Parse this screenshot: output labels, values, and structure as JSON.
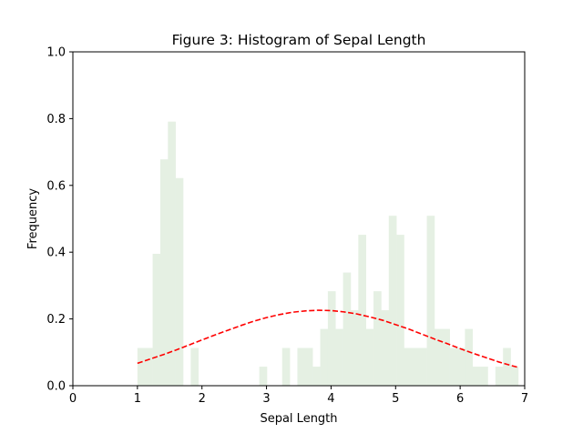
{
  "chart_data": {
    "type": "bar",
    "title": "Figure 3: Histogram of Sepal Length",
    "xlabel": "Sepal Length",
    "ylabel": "Frequency",
    "xlim": [
      0,
      7
    ],
    "ylim": [
      0,
      1.0
    ],
    "xticks": [
      "0",
      "1",
      "2",
      "3",
      "4",
      "5",
      "6",
      "7"
    ],
    "yticks": [
      "0.0",
      "0.2",
      "0.4",
      "0.6",
      "0.8",
      "1.0"
    ],
    "grid": false,
    "legend": "none",
    "histogram": {
      "name": "",
      "color": "#e5f0e3",
      "bin_width": 0.118,
      "bins": [
        {
          "x0": 1.0,
          "x1": 1.118,
          "value": 0.113
        },
        {
          "x0": 1.118,
          "x1": 1.236,
          "value": 0.113
        },
        {
          "x0": 1.236,
          "x1": 1.354,
          "value": 0.395
        },
        {
          "x0": 1.354,
          "x1": 1.472,
          "value": 0.678
        },
        {
          "x0": 1.472,
          "x1": 1.59,
          "value": 0.791
        },
        {
          "x0": 1.59,
          "x1": 1.708,
          "value": 0.622
        },
        {
          "x0": 1.708,
          "x1": 1.826,
          "value": 0.0
        },
        {
          "x0": 1.826,
          "x1": 1.944,
          "value": 0.113
        },
        {
          "x0": 2.888,
          "x1": 3.006,
          "value": 0.057
        },
        {
          "x0": 3.242,
          "x1": 3.36,
          "value": 0.113
        },
        {
          "x0": 3.478,
          "x1": 3.596,
          "value": 0.113
        },
        {
          "x0": 3.596,
          "x1": 3.714,
          "value": 0.113
        },
        {
          "x0": 3.714,
          "x1": 3.832,
          "value": 0.057
        },
        {
          "x0": 3.832,
          "x1": 3.95,
          "value": 0.17
        },
        {
          "x0": 3.95,
          "x1": 4.068,
          "value": 0.283
        },
        {
          "x0": 4.068,
          "x1": 4.186,
          "value": 0.17
        },
        {
          "x0": 4.186,
          "x1": 4.304,
          "value": 0.339
        },
        {
          "x0": 4.304,
          "x1": 4.422,
          "value": 0.226
        },
        {
          "x0": 4.422,
          "x1": 4.54,
          "value": 0.452
        },
        {
          "x0": 4.54,
          "x1": 4.658,
          "value": 0.17
        },
        {
          "x0": 4.658,
          "x1": 4.776,
          "value": 0.283
        },
        {
          "x0": 4.776,
          "x1": 4.894,
          "value": 0.226
        },
        {
          "x0": 4.894,
          "x1": 5.012,
          "value": 0.509
        },
        {
          "x0": 5.012,
          "x1": 5.13,
          "value": 0.452
        },
        {
          "x0": 5.13,
          "x1": 5.248,
          "value": 0.113
        },
        {
          "x0": 5.248,
          "x1": 5.366,
          "value": 0.113
        },
        {
          "x0": 5.366,
          "x1": 5.484,
          "value": 0.113
        },
        {
          "x0": 5.484,
          "x1": 5.602,
          "value": 0.509
        },
        {
          "x0": 5.602,
          "x1": 5.72,
          "value": 0.17
        },
        {
          "x0": 5.72,
          "x1": 5.838,
          "value": 0.17
        },
        {
          "x0": 5.838,
          "x1": 5.956,
          "value": 0.113
        },
        {
          "x0": 5.956,
          "x1": 6.074,
          "value": 0.113
        },
        {
          "x0": 6.074,
          "x1": 6.192,
          "value": 0.17
        },
        {
          "x0": 6.192,
          "x1": 6.31,
          "value": 0.057
        },
        {
          "x0": 6.31,
          "x1": 6.428,
          "value": 0.057
        },
        {
          "x0": 6.546,
          "x1": 6.664,
          "value": 0.057
        },
        {
          "x0": 6.664,
          "x1": 6.782,
          "value": 0.113
        },
        {
          "x0": 6.782,
          "x1": 6.9,
          "value": 0.057
        }
      ]
    },
    "series": [
      {
        "name": "",
        "type": "line",
        "style": "dashed",
        "color": "#ff0000",
        "x": [
          1.0,
          1.2,
          1.4,
          1.6,
          1.8,
          2.0,
          2.2,
          2.4,
          2.6,
          2.8,
          3.0,
          3.2,
          3.4,
          3.6,
          3.8,
          4.0,
          4.2,
          4.4,
          4.6,
          4.8,
          5.0,
          5.2,
          5.4,
          5.6,
          5.8,
          6.0,
          6.2,
          6.4,
          6.6,
          6.8,
          6.9
        ],
        "y": [
          0.067,
          0.08,
          0.093,
          0.107,
          0.122,
          0.137,
          0.152,
          0.166,
          0.18,
          0.193,
          0.204,
          0.213,
          0.22,
          0.224,
          0.226,
          0.225,
          0.221,
          0.215,
          0.206,
          0.196,
          0.183,
          0.17,
          0.155,
          0.14,
          0.126,
          0.111,
          0.097,
          0.084,
          0.071,
          0.06,
          0.055
        ]
      }
    ]
  }
}
